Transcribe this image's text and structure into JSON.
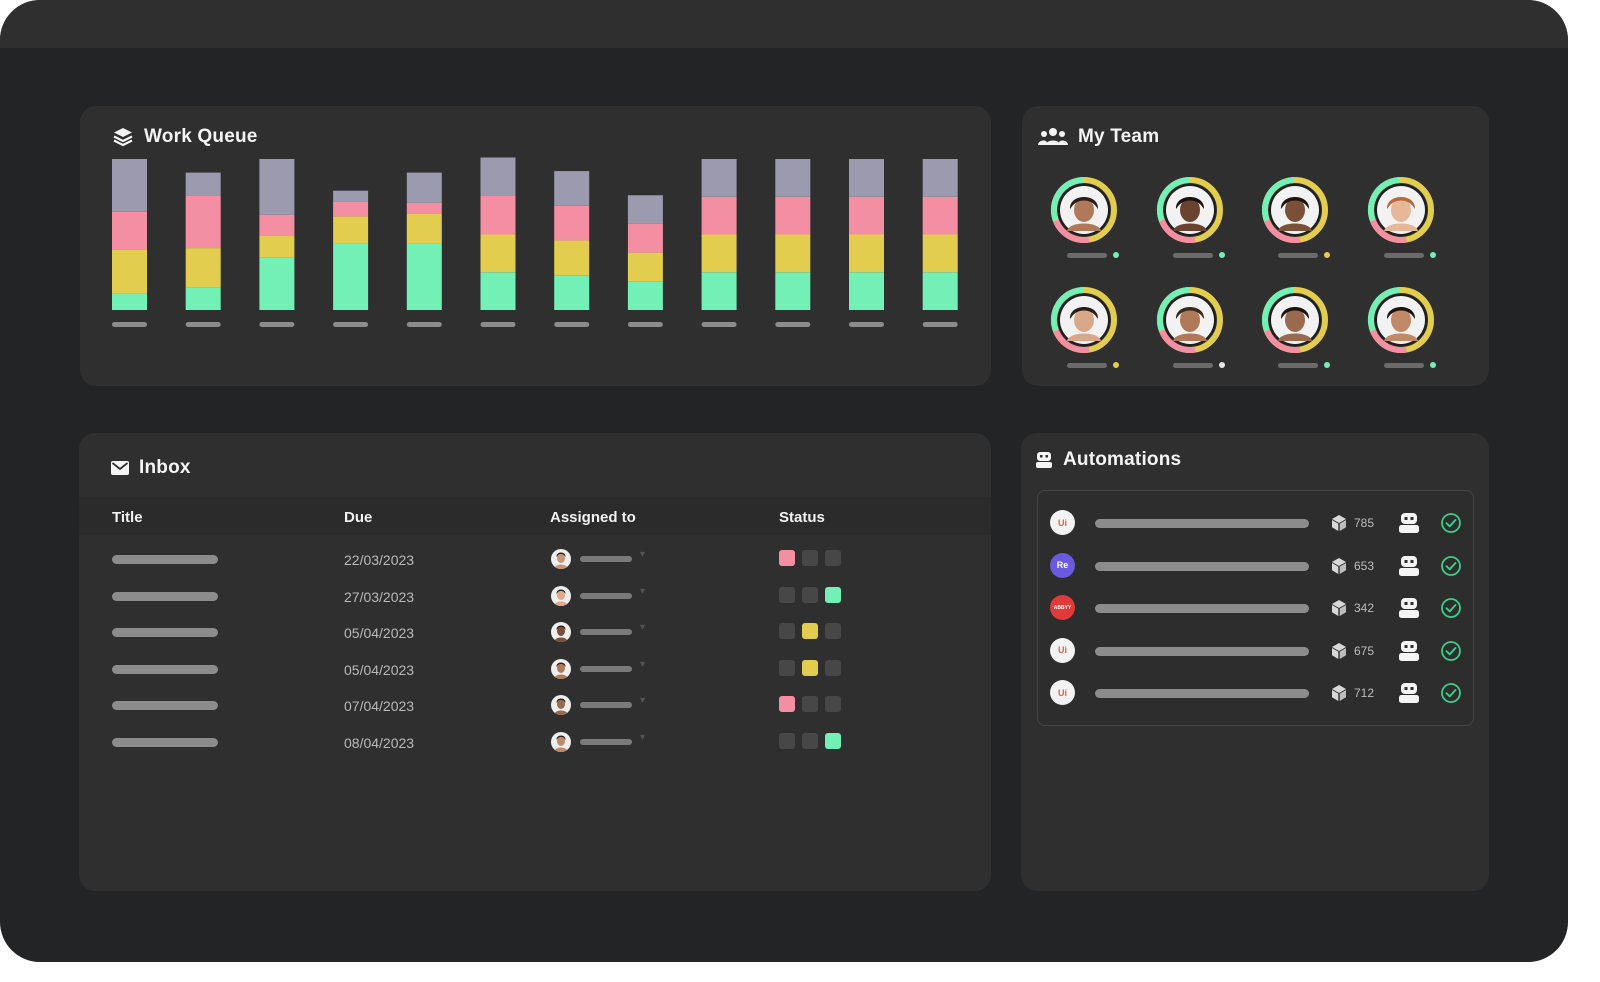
{
  "colors": {
    "grey": "#9b9aae",
    "pink": "#f48fa3",
    "yellow": "#e3cd4e",
    "green": "#73f0b6",
    "dot_green": "#73f0b6",
    "dot_yellow": "#e3cd4e",
    "dot_white": "#e6e6e6"
  },
  "work_queue": {
    "title": "Work Queue",
    "icon": "layers-icon",
    "chart_data": {
      "type": "bar",
      "stacked": true,
      "series_colors": [
        "#73f0b6",
        "#e3cd4e",
        "#f48fa3",
        "#9b9aae"
      ],
      "bars": [
        [
          11,
          29,
          25,
          35
        ],
        [
          15,
          26,
          35,
          15
        ],
        [
          35,
          14,
          14,
          37
        ],
        [
          44,
          18,
          10,
          7
        ],
        [
          44,
          20,
          7,
          20
        ],
        [
          25,
          25,
          26,
          25
        ],
        [
          23,
          23,
          23,
          23
        ],
        [
          19,
          19,
          19,
          19
        ],
        [
          25,
          25,
          25,
          25
        ],
        [
          25,
          25,
          25,
          25
        ],
        [
          25,
          25,
          25,
          25
        ],
        [
          25,
          25,
          25,
          25
        ]
      ],
      "max_total": 100
    }
  },
  "team": {
    "title": "My Team",
    "icon": "team-icon",
    "members": [
      {
        "skin": "#b07a5a",
        "hair": "#2a1e18",
        "status": "green"
      },
      {
        "skin": "#6a4330",
        "hair": "#1a1210",
        "status": "green"
      },
      {
        "skin": "#7a5038",
        "hair": "#1c1410",
        "status": "yellow"
      },
      {
        "skin": "#e7b79a",
        "hair": "#b86a3a",
        "status": "green"
      },
      {
        "skin": "#d9a88a",
        "hair": "#2a1e18",
        "status": "yellow"
      },
      {
        "skin": "#b07a5a",
        "hair": "#3a2a1e",
        "status": "white"
      },
      {
        "skin": "#9a6a50",
        "hair": "#1c1410",
        "status": "green"
      },
      {
        "skin": "#c08a68",
        "hair": "#1c1410",
        "status": "green"
      }
    ]
  },
  "inbox": {
    "title": "Inbox",
    "icon": "envelope-icon",
    "headers": {
      "title": "Title",
      "due": "Due",
      "assigned": "Assigned to",
      "status": "Status"
    },
    "rows": [
      {
        "due": "22/03/2023",
        "status": "pink",
        "avatar_skin": "#c99479"
      },
      {
        "due": "27/03/2023",
        "status": "green",
        "avatar_skin": "#e0a98c"
      },
      {
        "due": "05/04/2023",
        "status": "yellow",
        "avatar_skin": "#7a5038"
      },
      {
        "due": "05/04/2023",
        "status": "yellow",
        "avatar_skin": "#b07a5a"
      },
      {
        "due": "07/04/2023",
        "status": "pink",
        "avatar_skin": "#9a6a50"
      },
      {
        "due": "08/04/2023",
        "status": "green",
        "avatar_skin": "#c08a68"
      }
    ]
  },
  "automations": {
    "title": "Automations",
    "icon": "robot-icon",
    "rows": [
      {
        "app_label": "Ui",
        "app_bg": "#f3f3f3",
        "app_fg": "#e8613a",
        "count": "785"
      },
      {
        "app_label": "Re",
        "app_bg": "#6a5ae0",
        "app_fg": "#ffffff",
        "count": "653"
      },
      {
        "app_label": "ABBYY",
        "app_bg": "#e03a3a",
        "app_fg": "#ffffff",
        "count": "342"
      },
      {
        "app_label": "Ui",
        "app_bg": "#f3f3f3",
        "app_fg": "#e8613a",
        "count": "675"
      },
      {
        "app_label": "Ui",
        "app_bg": "#f3f3f3",
        "app_fg": "#e8613a",
        "count": "712"
      }
    ]
  }
}
